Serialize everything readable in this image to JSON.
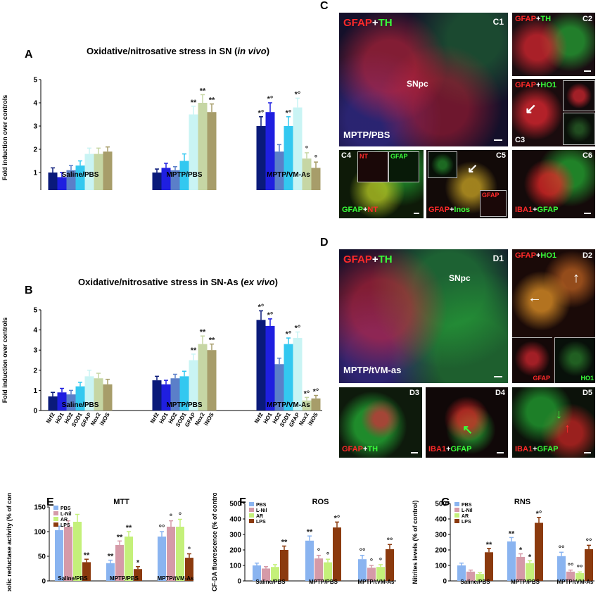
{
  "figure": {
    "panel_letters": {
      "A": "A",
      "B": "B",
      "C": "C",
      "D": "D",
      "E": "E",
      "F": "F",
      "G": "G"
    },
    "micrographs": {
      "C1": {
        "label": "C1",
        "stain_red": "GFAP",
        "plus": "+",
        "stain_green": "TH",
        "region": "SNpc",
        "condition": "MPTP/PBS"
      },
      "C2": {
        "label": "C2",
        "stain_red": "GFAP",
        "plus": "+",
        "stain_green": "TH"
      },
      "C3": {
        "label": "C3",
        "stain_red": "GFAP",
        "plus": "+",
        "stain_green": "HO1"
      },
      "C4": {
        "label": "C4",
        "stain_green": "GFAP",
        "plus": "+",
        "stain_red": "NT",
        "inset_red": "NT",
        "inset_green": "GFAP"
      },
      "C5": {
        "label": "C5",
        "stain_red": "GFAP",
        "plus": "+",
        "stain_green": "Inos",
        "inset_red": "GFAP"
      },
      "C6": {
        "label": "C6",
        "stain_red": "IBA1",
        "plus": "+",
        "stain_green": "GFAP"
      },
      "D1": {
        "label": "D1",
        "stain_red": "GFAP",
        "plus": "+",
        "stain_green": "TH",
        "region": "SNpc",
        "condition": "MPTP/tVM-as"
      },
      "D2": {
        "label": "D2",
        "stain_red": "GFAP",
        "plus": "+",
        "stain_green": "HO1",
        "inset_red": "GFAP",
        "inset_green": "HO1"
      },
      "D3": {
        "label": "D3",
        "stain_red": "GFAP",
        "plus": "+",
        "stain_green": "TH"
      },
      "D4": {
        "label": "D4",
        "stain_red": "IBA1",
        "plus": "+",
        "stain_green": "GFAP"
      },
      "D5": {
        "label": "D5",
        "stain_red": "IBA1",
        "plus": "+",
        "stain_green": "GFAP"
      }
    }
  },
  "chart_data": [
    {
      "id": "A",
      "type": "bar",
      "title": "Oxidative/nitrosative stress in SN (",
      "title_italic": "in vivo",
      "title_end": ")",
      "ylabel": "Fold induction over controls",
      "ylim": [
        0,
        5
      ],
      "yticks": [
        "0",
        "1",
        "2",
        "3",
        "4",
        "5"
      ],
      "categories": [
        "Nrf2",
        "HO1",
        "HO2",
        "SOD1",
        "GFAP",
        "Nox2",
        "iNOS"
      ],
      "colors": [
        "#0a1a7a",
        "#1f1fe0",
        "#5b7fc9",
        "#33c8f0",
        "#c9f4f4",
        "#c6d6a4",
        "#a79d6a"
      ],
      "groups": [
        {
          "name": "Saline/PBS",
          "values": [
            1.0,
            0.8,
            1.1,
            1.3,
            1.8,
            1.8,
            1.9
          ],
          "errors": [
            0.2,
            0.2,
            0.2,
            0.2,
            0.25,
            0.25,
            0.2
          ],
          "marks": [
            "",
            "",
            "",
            "",
            "",
            "",
            ""
          ]
        },
        {
          "name": "MPTP/PBS",
          "values": [
            1.0,
            1.2,
            1.1,
            1.5,
            3.5,
            4.0,
            3.6
          ],
          "errors": [
            0.15,
            0.2,
            0.15,
            0.3,
            0.35,
            0.35,
            0.35
          ],
          "marks": [
            "",
            "",
            "",
            "",
            "**",
            "**",
            "**"
          ]
        },
        {
          "name": "MPTP/VM-As",
          "values": [
            3.0,
            3.6,
            1.9,
            3.0,
            3.8,
            1.6,
            1.2
          ],
          "errors": [
            0.4,
            0.4,
            0.3,
            0.4,
            0.4,
            0.25,
            0.25
          ],
          "marks": [
            "*°",
            "*°",
            "",
            "*°",
            "*°",
            "°",
            "°"
          ]
        }
      ]
    },
    {
      "id": "B",
      "type": "bar",
      "title": "Oxidative/nitrosative stress in SN-As (",
      "title_italic": "ex vivo",
      "title_end": ")",
      "ylabel": "Fold induction over controls",
      "ylim": [
        0,
        5
      ],
      "yticks": [
        "0",
        "1",
        "2",
        "3",
        "4",
        "5"
      ],
      "categories": [
        "Nrf2",
        "HO1",
        "HO2",
        "SOD1",
        "GFAP",
        "Nox2",
        "iNOS"
      ],
      "colors": [
        "#0a1a7a",
        "#1f1fe0",
        "#5b7fc9",
        "#33c8f0",
        "#c9f4f4",
        "#c6d6a4",
        "#a79d6a"
      ],
      "groups": [
        {
          "name": "Saline/PBS",
          "values": [
            0.7,
            0.9,
            0.8,
            1.2,
            1.7,
            1.6,
            1.3
          ],
          "errors": [
            0.2,
            0.2,
            0.2,
            0.2,
            0.3,
            0.25,
            0.25
          ],
          "marks": [
            "",
            "",
            "",
            "",
            "",
            "",
            ""
          ]
        },
        {
          "name": "MPTP/PBS",
          "values": [
            1.5,
            1.3,
            1.6,
            1.7,
            2.5,
            3.3,
            3.0
          ],
          "errors": [
            0.2,
            0.2,
            0.2,
            0.25,
            0.3,
            0.4,
            0.3
          ],
          "marks": [
            "",
            "",
            "",
            "",
            "**",
            "**",
            "**"
          ]
        },
        {
          "name": "MPTP/VM-As",
          "values": [
            4.5,
            4.2,
            2.3,
            3.3,
            3.6,
            0.5,
            0.6
          ],
          "errors": [
            0.45,
            0.35,
            0.3,
            0.3,
            0.3,
            0.15,
            0.15
          ],
          "marks": [
            "*°",
            "*°",
            "",
            "*°",
            "*°",
            "*°",
            "*°"
          ]
        }
      ]
    },
    {
      "id": "E",
      "type": "bar",
      "title": "MTT",
      "ylabel": "Metabolic reductase activity (% of control)",
      "ylim": [
        0,
        150
      ],
      "yticks": [
        "0",
        "50",
        "100",
        "150"
      ],
      "legend": [
        "PBS",
        "L-Nil",
        "AR",
        "LPS"
      ],
      "colors": [
        "#8ab4f0",
        "#d59aa8",
        "#c4f07a",
        "#8b3a0e"
      ],
      "groups": [
        {
          "name": "Saline/PBS",
          "values": [
            103,
            110,
            120,
            38
          ],
          "errors": [
            8,
            12,
            15,
            6
          ],
          "marks": [
            "",
            "",
            "",
            "**"
          ]
        },
        {
          "name": "MPTP/PBS",
          "values": [
            36,
            73,
            90,
            24
          ],
          "errors": [
            6,
            8,
            10,
            5
          ],
          "marks": [
            "**",
            "**",
            "**",
            "*"
          ]
        },
        {
          "name": "MPTP/tVM-As",
          "values": [
            90,
            110,
            110,
            47
          ],
          "errors": [
            10,
            12,
            15,
            8
          ],
          "marks": [
            "°°",
            "°",
            "°",
            "°"
          ]
        }
      ]
    },
    {
      "id": "F",
      "type": "bar",
      "title": "ROS",
      "ylabel": "DCF-DA fluorescence (% of control)",
      "ylim": [
        0,
        500
      ],
      "yticks": [
        "0",
        "100",
        "200",
        "300",
        "400",
        "500"
      ],
      "legend": [
        "PBS",
        "L-Nil",
        "AR",
        "LPS"
      ],
      "colors": [
        "#8ab4f0",
        "#d59aa8",
        "#c4f07a",
        "#8b3a0e"
      ],
      "groups": [
        {
          "name": "Saline/PBS",
          "values": [
            100,
            80,
            90,
            200
          ],
          "errors": [
            15,
            12,
            15,
            25
          ],
          "marks": [
            "",
            "",
            "",
            "**"
          ]
        },
        {
          "name": "MPTP/PBS",
          "values": [
            260,
            145,
            120,
            345
          ],
          "errors": [
            30,
            20,
            20,
            35
          ],
          "marks": [
            "**",
            "°",
            "°",
            "*°"
          ]
        },
        {
          "name": "MPTP/tVM-As",
          "values": [
            140,
            85,
            90,
            205
          ],
          "errors": [
            25,
            15,
            15,
            30
          ],
          "marks": [
            "°°",
            "°",
            "°",
            "°°"
          ]
        }
      ]
    },
    {
      "id": "G",
      "type": "bar",
      "title": "RNS",
      "ylabel": "Nitrites levels (% of control)",
      "ylim": [
        0,
        500
      ],
      "yticks": [
        "0",
        "100",
        "200",
        "300",
        "400",
        "500"
      ],
      "legend": [
        "PBS",
        "L-Nil",
        "AR",
        "LPS"
      ],
      "colors": [
        "#8ab4f0",
        "#d59aa8",
        "#c4f07a",
        "#8b3a0e"
      ],
      "groups": [
        {
          "name": "Saline/PBS",
          "values": [
            100,
            60,
            45,
            185
          ],
          "errors": [
            15,
            10,
            8,
            25
          ],
          "marks": [
            "",
            "",
            "",
            "**"
          ]
        },
        {
          "name": "MPTP/PBS",
          "values": [
            255,
            155,
            115,
            375
          ],
          "errors": [
            25,
            20,
            15,
            35
          ],
          "marks": [
            "**",
            "*",
            "*",
            "*°"
          ]
        },
        {
          "name": "MPTP/tVM-As",
          "values": [
            160,
            60,
            50,
            205
          ],
          "errors": [
            25,
            10,
            8,
            25
          ],
          "marks": [
            "°°",
            "°°",
            "°°",
            "°°"
          ]
        }
      ]
    }
  ]
}
